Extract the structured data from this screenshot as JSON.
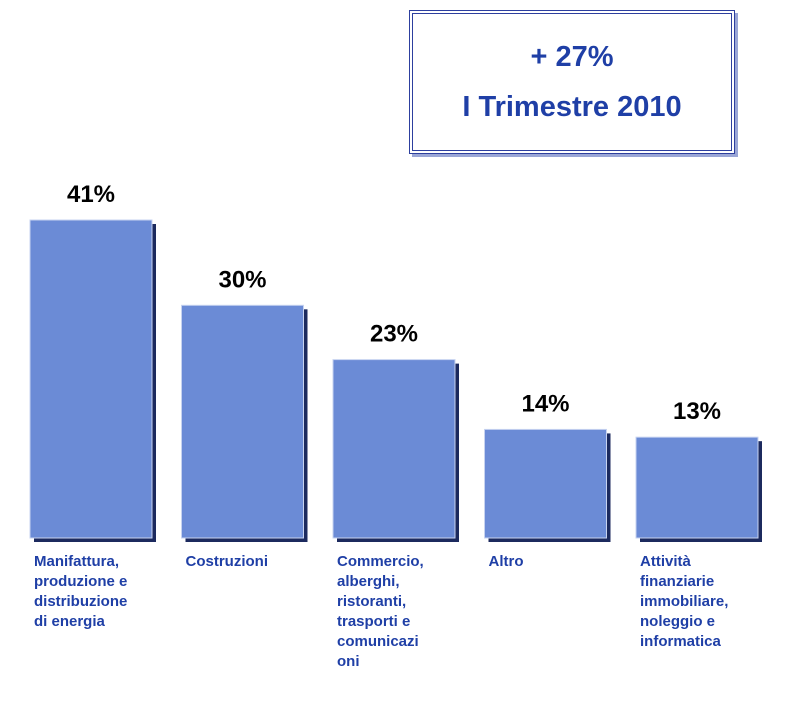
{
  "chart_data": {
    "type": "bar",
    "annotations": [
      "+ 27%",
      "I Trimestre 2010"
    ],
    "categories": [
      "Manifattura,\nproduzione e\ndistribuzione\ndi energia",
      "Costruzioni",
      "Commercio,\nalberghi,\nristoranti,\ntrasporti e\ncomunicazi\noni",
      "Altro",
      "Attività\nfinanziarie\nimmobiliare,\nnoleggio e\ninformatica"
    ],
    "values": [
      41,
      30,
      23,
      14,
      13
    ],
    "value_labels": [
      "41%",
      "30%",
      "23%",
      "14%",
      "13%"
    ],
    "color": "#6b8bd6"
  }
}
